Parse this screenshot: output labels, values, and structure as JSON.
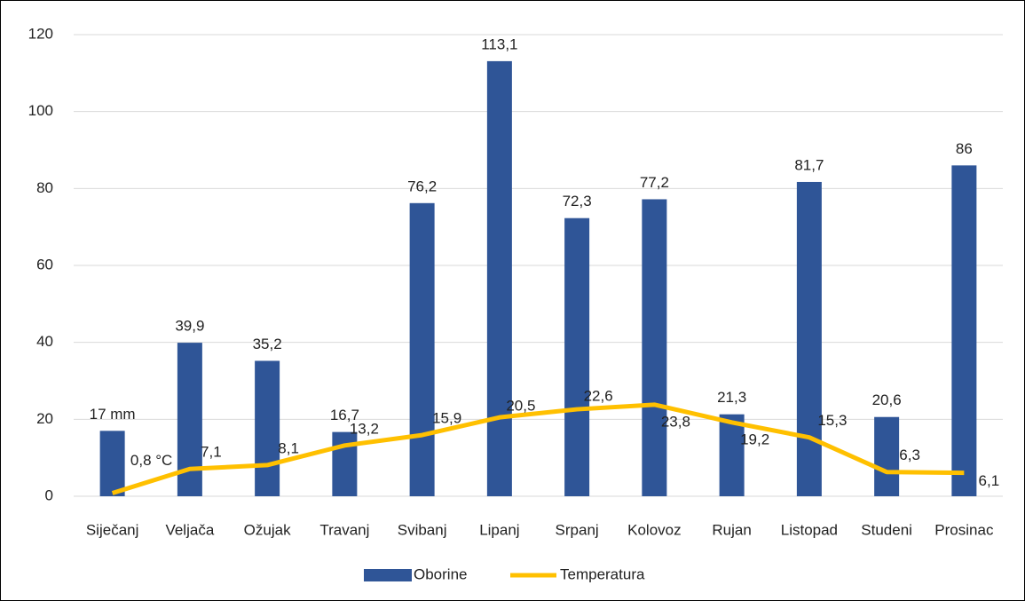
{
  "chart_data": {
    "type": "bar",
    "categories": [
      "Siječanj",
      "Veljača",
      "Ožujak",
      "Travanj",
      "Svibanj",
      "Lipanj",
      "Srpanj",
      "Kolovoz",
      "Rujan",
      "Listopad",
      "Studeni",
      "Prosinac"
    ],
    "series": [
      {
        "name": "Oborine",
        "type": "bar",
        "color": "#2f5597",
        "values": [
          17,
          39.9,
          35.2,
          16.7,
          76.2,
          113.1,
          72.3,
          77.2,
          21.3,
          81.7,
          20.6,
          86
        ],
        "value_labels": [
          "17 mm",
          "39,9",
          "35,2",
          "16,7",
          "76,2",
          "113,1",
          "72,3",
          "77,2",
          "21,3",
          "81,7",
          "20,6",
          "86"
        ]
      },
      {
        "name": "Temperatura",
        "type": "line",
        "color": "#ffc000",
        "values": [
          0.8,
          7.1,
          8.1,
          13.2,
          15.9,
          20.5,
          22.6,
          23.8,
          19.2,
          15.3,
          6.3,
          6.1
        ],
        "value_labels": [
          "0,8 °C",
          "7,1",
          "8,1",
          "13,2",
          "15,9",
          "20,5",
          "22,6",
          "23,8",
          "19,2",
          "15,3",
          "6,3",
          "6,1"
        ]
      }
    ],
    "ylim": [
      0,
      120
    ],
    "yticks": [
      0,
      20,
      40,
      60,
      80,
      100,
      120
    ],
    "grid": true,
    "legend": "bottom"
  }
}
